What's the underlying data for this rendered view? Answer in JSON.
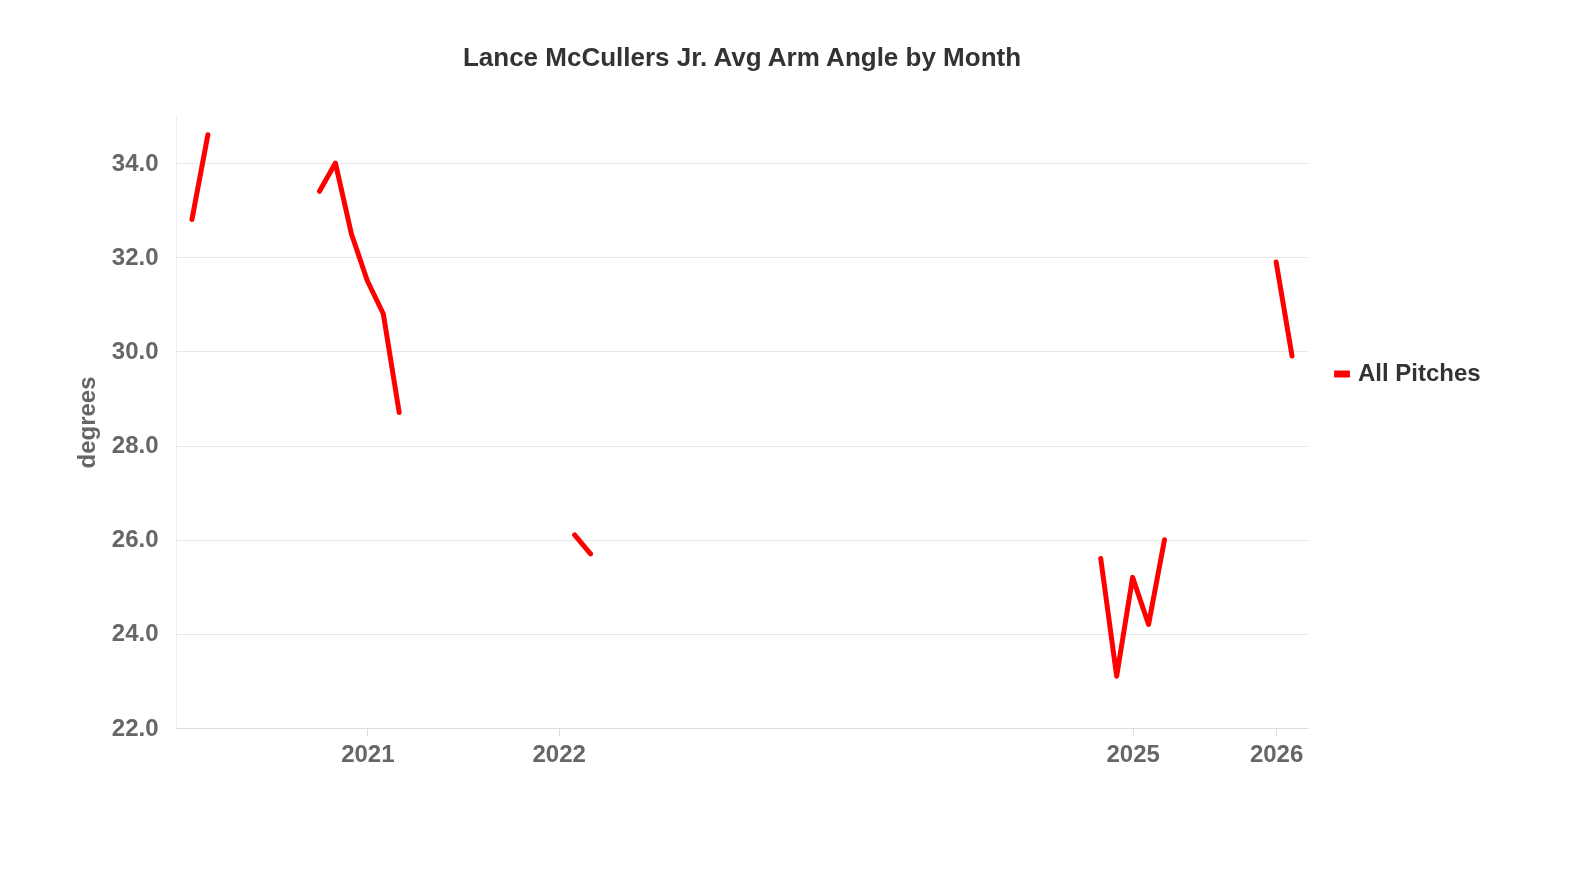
{
  "chart_data": {
    "type": "line",
    "title": "Lance McCullers Jr. Avg Arm Angle by Month",
    "ylabel": "degrees",
    "categories": [
      null,
      null,
      null,
      null,
      null,
      null,
      null,
      null,
      null,
      null,
      null,
      "2021",
      null,
      null,
      null,
      null,
      null,
      null,
      null,
      null,
      null,
      null,
      null,
      "2022",
      null,
      null,
      null,
      null,
      null,
      null,
      null,
      null,
      null,
      null,
      null,
      null,
      null,
      null,
      null,
      null,
      null,
      null,
      null,
      null,
      null,
      null,
      null,
      null,
      null,
      null,
      null,
      null,
      null,
      null,
      null,
      null,
      null,
      null,
      null,
      "2025",
      null,
      null,
      null,
      null,
      null,
      null,
      null,
      null,
      "2026",
      null
    ],
    "series": [
      {
        "name": "All Pitches",
        "color": "#ff0000",
        "values": [
          32.8,
          34.6,
          null,
          null,
          null,
          null,
          null,
          null,
          33.4,
          34.0,
          32.5,
          31.5,
          30.8,
          28.7,
          null,
          null,
          null,
          null,
          null,
          null,
          null,
          null,
          null,
          null,
          26.1,
          25.7,
          null,
          null,
          null,
          null,
          null,
          null,
          null,
          null,
          null,
          null,
          null,
          null,
          null,
          null,
          null,
          null,
          null,
          null,
          null,
          null,
          null,
          null,
          null,
          null,
          null,
          null,
          null,
          null,
          null,
          null,
          null,
          25.6,
          23.1,
          25.2,
          24.2,
          26.0,
          null,
          null,
          null,
          null,
          null,
          null,
          31.9,
          29.9
        ]
      }
    ],
    "ylim": [
      22,
      35
    ],
    "yticks": [
      {
        "value": 22,
        "label": "22.0"
      },
      {
        "value": 24,
        "label": "24.0"
      },
      {
        "value": 26,
        "label": "26.0"
      },
      {
        "value": 28,
        "label": "28.0"
      },
      {
        "value": 30,
        "label": "30.0"
      },
      {
        "value": 32,
        "label": "32.0"
      },
      {
        "value": 34,
        "label": "34.0"
      }
    ],
    "grid": "y",
    "legend": "right",
    "marker": "none",
    "line_style": "solid"
  }
}
